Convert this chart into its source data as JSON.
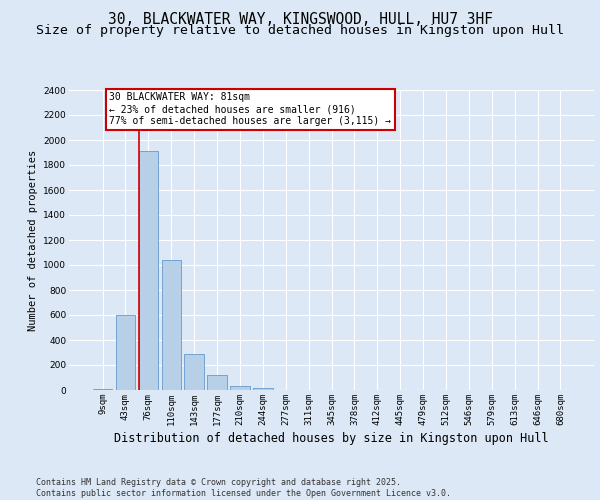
{
  "title": "30, BLACKWATER WAY, KINGSWOOD, HULL, HU7 3HF",
  "subtitle": "Size of property relative to detached houses in Kingston upon Hull",
  "xlabel": "Distribution of detached houses by size in Kingston upon Hull",
  "ylabel": "Number of detached properties",
  "categories": [
    "9sqm",
    "43sqm",
    "76sqm",
    "110sqm",
    "143sqm",
    "177sqm",
    "210sqm",
    "244sqm",
    "277sqm",
    "311sqm",
    "345sqm",
    "378sqm",
    "412sqm",
    "445sqm",
    "479sqm",
    "512sqm",
    "546sqm",
    "579sqm",
    "613sqm",
    "646sqm",
    "680sqm"
  ],
  "values": [
    10,
    600,
    1910,
    1040,
    290,
    120,
    35,
    15,
    0,
    0,
    0,
    0,
    0,
    0,
    0,
    0,
    0,
    0,
    0,
    0,
    0
  ],
  "bar_color": "#b8cfe8",
  "bar_edgecolor": "#6699cc",
  "ylim": [
    0,
    2400
  ],
  "yticks": [
    0,
    200,
    400,
    600,
    800,
    1000,
    1200,
    1400,
    1600,
    1800,
    2000,
    2200,
    2400
  ],
  "vline_x": 1.575,
  "vline_color": "#cc0000",
  "annotation_text": "30 BLACKWATER WAY: 81sqm\n← 23% of detached houses are smaller (916)\n77% of semi-detached houses are larger (3,115) →",
  "annotation_box_edgecolor": "#cc0000",
  "footer": "Contains HM Land Registry data © Crown copyright and database right 2025.\nContains public sector information licensed under the Open Government Licence v3.0.",
  "bg_color": "#dce8f5",
  "grid_color": "#ffffff",
  "title_fontsize": 10.5,
  "subtitle_fontsize": 9.5,
  "xlabel_fontsize": 8.5,
  "ylabel_fontsize": 7.5,
  "tick_fontsize": 6.5,
  "annot_fontsize": 7,
  "footer_fontsize": 6
}
